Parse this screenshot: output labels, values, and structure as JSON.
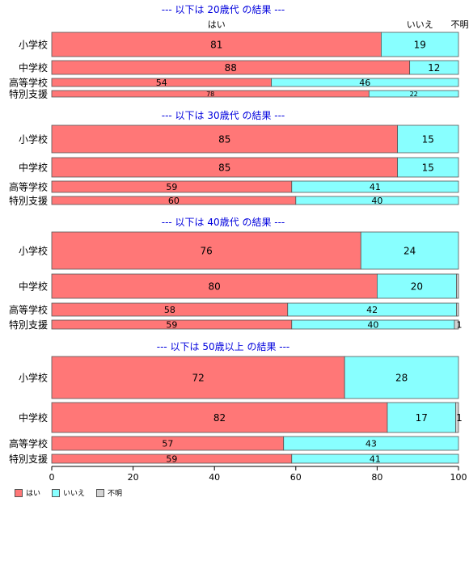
{
  "chart_data": {
    "type": "bar",
    "orientation": "horizontal",
    "stacked": true,
    "xlim": [
      0,
      100
    ],
    "x_ticks": [
      0,
      20,
      40,
      60,
      80,
      100
    ],
    "categories": [
      "小学校",
      "中学校",
      "高等学校",
      "特別支援"
    ],
    "colors": {
      "yes": "#ff7777",
      "no": "#88ffff",
      "unknown": "#d3d3d3"
    },
    "legend": [
      {
        "key": "yes",
        "label": "はい"
      },
      {
        "key": "no",
        "label": "いいえ"
      },
      {
        "key": "unknown",
        "label": "不明"
      }
    ],
    "top_labels": {
      "yes": "はい",
      "no": "いいえ",
      "unknown": "不明"
    },
    "panels": [
      {
        "title": "--- 以下は 20歳代 の結果 ---",
        "rows": [
          {
            "label": "小学校",
            "yes": 81,
            "no": 19,
            "unknown": 0,
            "shown": [
              "81",
              "19",
              ""
            ]
          },
          {
            "label": "中学校",
            "yes": 88,
            "no": 12,
            "unknown": 0,
            "shown": [
              "88",
              "12",
              ""
            ]
          },
          {
            "label": "高等学校",
            "yes": 54,
            "no": 46,
            "unknown": 0,
            "shown": [
              "54",
              "46",
              ""
            ]
          },
          {
            "label": "特別支援",
            "yes": 78,
            "no": 22,
            "unknown": 0,
            "shown": [
              "78",
              "22",
              ""
            ]
          }
        ]
      },
      {
        "title": "--- 以下は 30歳代 の結果 ---",
        "rows": [
          {
            "label": "小学校",
            "yes": 85,
            "no": 15,
            "unknown": 0,
            "shown": [
              "85",
              "15",
              ""
            ]
          },
          {
            "label": "中学校",
            "yes": 85,
            "no": 15,
            "unknown": 0,
            "shown": [
              "85",
              "15",
              ""
            ]
          },
          {
            "label": "高等学校",
            "yes": 59,
            "no": 41,
            "unknown": 0,
            "shown": [
              "59",
              "41",
              ""
            ]
          },
          {
            "label": "特別支援",
            "yes": 60,
            "no": 40,
            "unknown": 0,
            "shown": [
              "60",
              "40",
              ""
            ]
          }
        ]
      },
      {
        "title": "--- 以下は 40歳代 の結果 ---",
        "rows": [
          {
            "label": "小学校",
            "yes": 76,
            "no": 24,
            "unknown": 0,
            "shown": [
              "76",
              "24",
              ""
            ]
          },
          {
            "label": "中学校",
            "yes": 80,
            "no": 19.5,
            "unknown": 0.5,
            "shown": [
              "80",
              "20",
              ""
            ]
          },
          {
            "label": "高等学校",
            "yes": 58,
            "no": 41.5,
            "unknown": 0.5,
            "shown": [
              "58",
              "42",
              ""
            ]
          },
          {
            "label": "特別支援",
            "yes": 59,
            "no": 40,
            "unknown": 1,
            "shown": [
              "59",
              "40",
              "1"
            ]
          }
        ]
      },
      {
        "title": "--- 以下は 50歳以上 の結果 ---",
        "rows": [
          {
            "label": "小学校",
            "yes": 72,
            "no": 28,
            "unknown": 0,
            "shown": [
              "72",
              "28",
              ""
            ]
          },
          {
            "label": "中学校",
            "yes": 82.5,
            "no": 16.8,
            "unknown": 0.7,
            "shown": [
              "82",
              "17",
              "1"
            ]
          },
          {
            "label": "高等学校",
            "yes": 57,
            "no": 43,
            "unknown": 0,
            "shown": [
              "57",
              "43",
              ""
            ]
          },
          {
            "label": "特別支援",
            "yes": 59,
            "no": 41,
            "unknown": 0,
            "shown": [
              "59",
              "41",
              ""
            ]
          }
        ]
      }
    ]
  }
}
